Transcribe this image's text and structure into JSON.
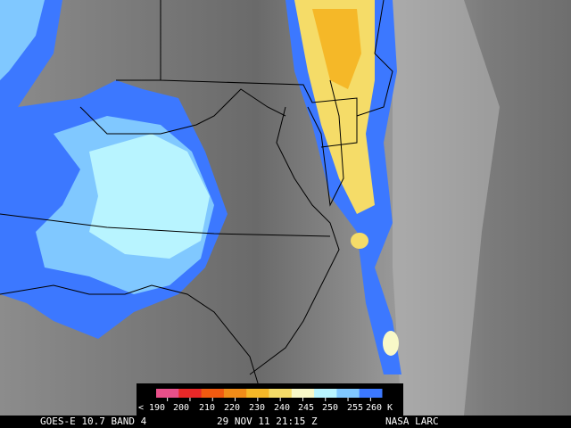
{
  "footer": {
    "satellite": "GOES-E 10.7 BAND 4",
    "datetime": "29 NOV 11 21:15 Z",
    "credit": "NASA LARC"
  },
  "colorbar": {
    "labels": [
      "< 190",
      "200",
      "210",
      "220",
      "230",
      "240",
      "245",
      "250",
      "255",
      "260 K"
    ],
    "colors": [
      "#e8508a",
      "#e82828",
      "#f05a10",
      "#f08c18",
      "#f5b828",
      "#f5dc68",
      "#f8f8c8",
      "#b8f4ff",
      "#80c8ff",
      "#3c78ff"
    ]
  }
}
